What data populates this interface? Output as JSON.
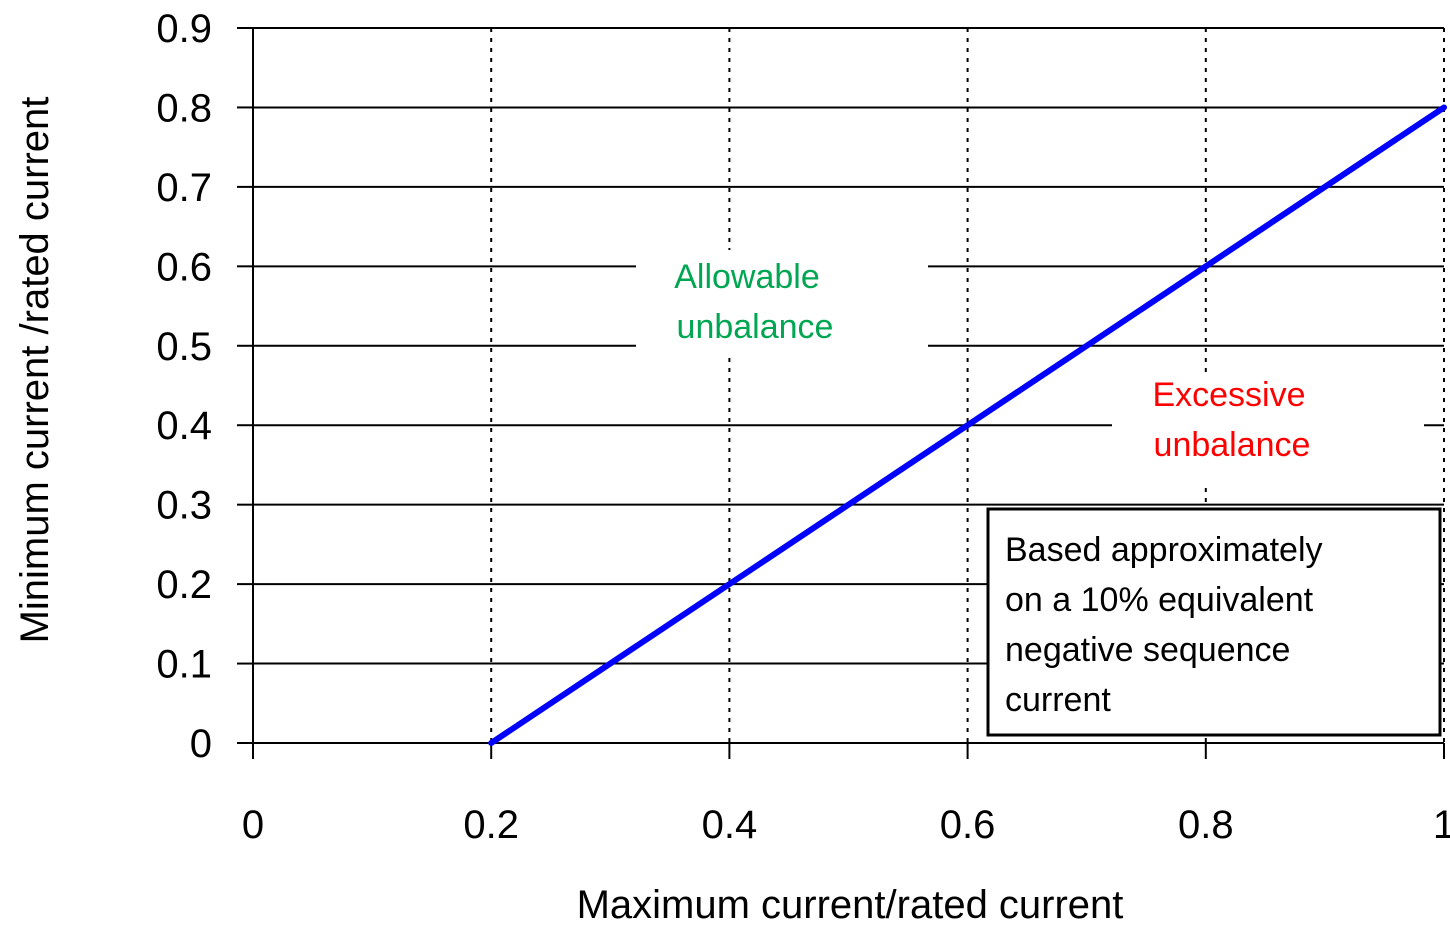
{
  "chart_data": {
    "type": "line",
    "title": "",
    "xlabel": "Maximum current/rated current",
    "ylabel": "Minimum current /rated current",
    "xlim": [
      0,
      1
    ],
    "ylim": [
      0,
      0.9
    ],
    "x_ticks": [
      "0",
      "0.2",
      "0.4",
      "0.6",
      "0.8",
      "1"
    ],
    "y_ticks": [
      "0",
      "0.1",
      "0.2",
      "0.3",
      "0.4",
      "0.5",
      "0.6",
      "0.7",
      "0.8",
      "0.9"
    ],
    "grid": {
      "horizontal": "solid",
      "vertical": "dotted"
    },
    "series": [
      {
        "x": [
          0.2,
          1.0
        ],
        "y": [
          0.0,
          0.8
        ],
        "color": "#0000ff"
      }
    ],
    "annotations": {
      "allowable": {
        "lines": [
          "Allowable",
          "unbalance"
        ],
        "color": "#00a651"
      },
      "excessive": {
        "lines": [
          "Excessive",
          "unbalance"
        ],
        "color": "#ff0000"
      },
      "note": {
        "lines": [
          "Based approximately",
          "on a 10% equivalent",
          "negative sequence",
          "current"
        ]
      }
    }
  }
}
